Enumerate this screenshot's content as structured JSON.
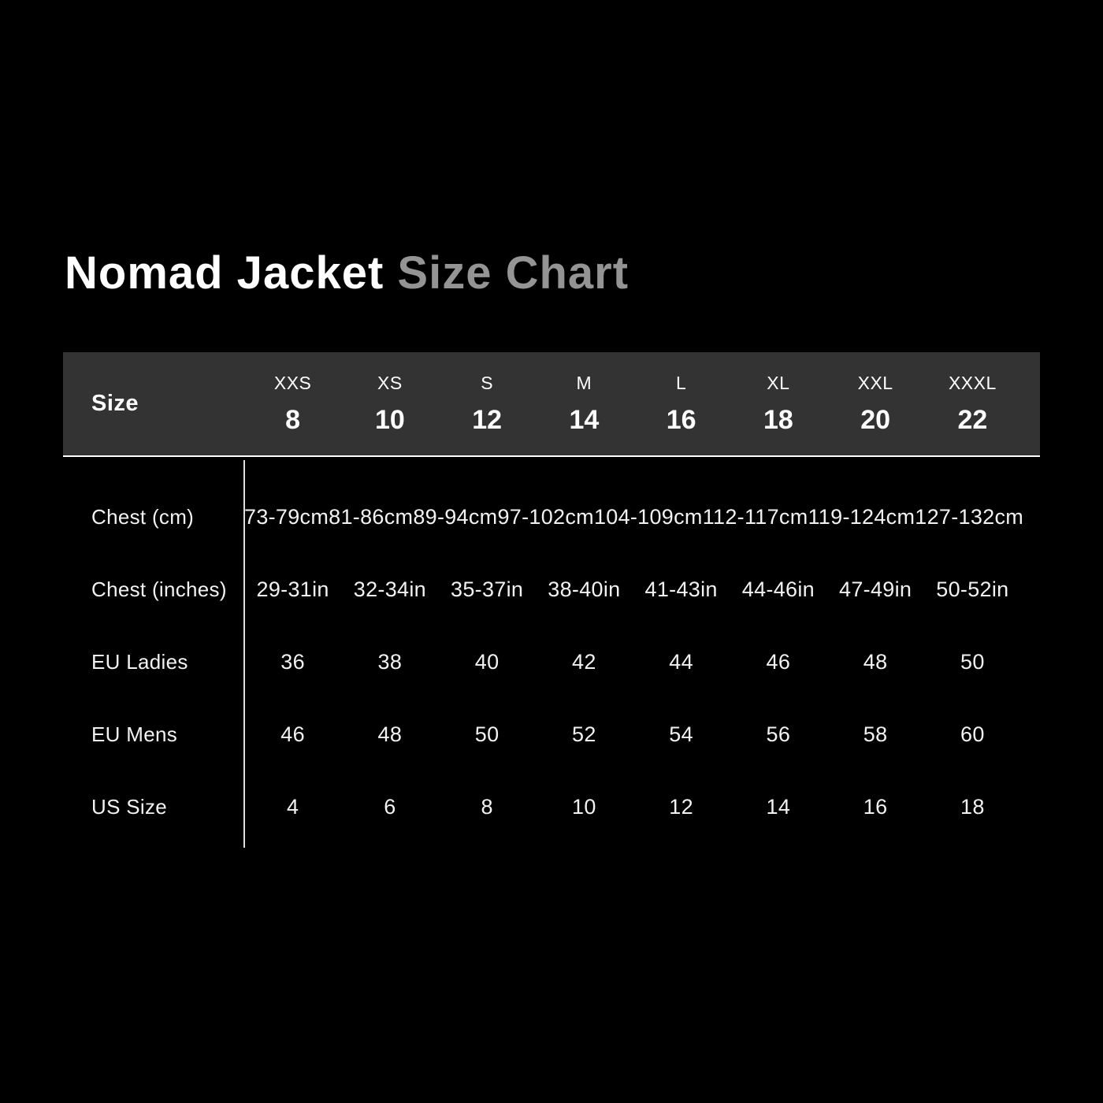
{
  "title": {
    "main": "Nomad Jacket",
    "accent": "Size Chart"
  },
  "colors": {
    "background": "#000000",
    "header_bg": "#333333",
    "header_underline": "#ffffff",
    "title_main": "#ffffff",
    "title_accent": "#949494",
    "text": "#f2f2f2",
    "divider": "#dedede"
  },
  "chart_data": {
    "type": "table",
    "title": "Nomad Jacket Size Chart",
    "corner_label": "Size",
    "header": {
      "size_labels": [
        "XXS",
        "XS",
        "S",
        "M",
        "L",
        "XL",
        "XXL",
        "XXXL"
      ],
      "size_numbers": [
        "8",
        "10",
        "12",
        "14",
        "16",
        "18",
        "20",
        "22"
      ]
    },
    "rows": [
      {
        "label": "Chest (cm)",
        "values": [
          "73-79cm",
          "81-86cm",
          "89-94cm",
          "97-102cm",
          "104-109cm",
          "112-117cm",
          "119-124cm",
          "127-132cm"
        ]
      },
      {
        "label": "Chest (inches)",
        "values": [
          "29-31in",
          "32-34in",
          "35-37in",
          "38-40in",
          "41-43in",
          "44-46in",
          "47-49in",
          "50-52in"
        ]
      },
      {
        "label": "EU Ladies",
        "values": [
          "36",
          "38",
          "40",
          "42",
          "44",
          "46",
          "48",
          "50"
        ]
      },
      {
        "label": "EU Mens",
        "values": [
          "46",
          "48",
          "50",
          "52",
          "54",
          "56",
          "58",
          "60"
        ]
      },
      {
        "label": "US Size",
        "values": [
          "4",
          "6",
          "8",
          "10",
          "12",
          "14",
          "16",
          "18"
        ]
      }
    ]
  }
}
